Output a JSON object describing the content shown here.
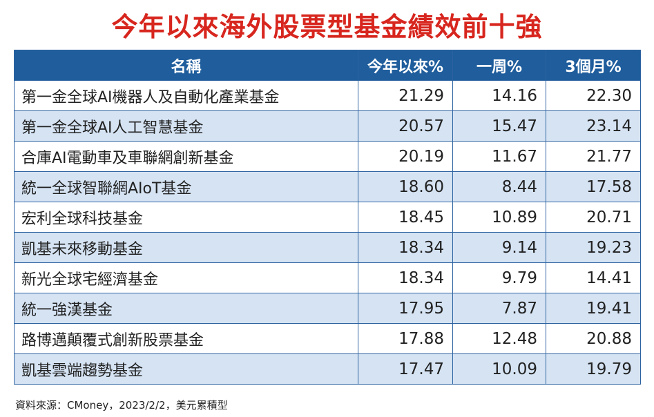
{
  "title": "今年以來海外股票型基金績效前十強",
  "table": {
    "header": [
      "名稱",
      "今年以來%",
      "一周%",
      "3個月%"
    ],
    "rows": [
      [
        "第一金全球AI機器人及自動化產業基金",
        "21.29",
        "14.16",
        "22.30"
      ],
      [
        "第一金全球AI人工智慧基金",
        "20.57",
        "15.47",
        "23.14"
      ],
      [
        "合庫AI電動車及車聯網創新基金",
        "20.19",
        "11.67",
        "21.77"
      ],
      [
        "統一全球智聯網AIoT基金",
        "18.60",
        "8.44",
        "17.58"
      ],
      [
        "宏利全球科技基金",
        "18.45",
        "10.89",
        "20.71"
      ],
      [
        "凱基未來移動基金",
        "18.34",
        "9.14",
        "19.23"
      ],
      [
        "新光全球宅經濟基金",
        "18.34",
        "9.79",
        "14.41"
      ],
      [
        "統一強漢基金",
        "17.95",
        "7.87",
        "19.41"
      ],
      [
        "路博邁顛覆式創新股票基金",
        "17.88",
        "12.48",
        "20.88"
      ],
      [
        "凱基雲端趨勢基金",
        "17.47",
        "10.09",
        "19.79"
      ]
    ]
  },
  "footer": "資料來源：CMoney，2023/2/2，美元累積型"
}
